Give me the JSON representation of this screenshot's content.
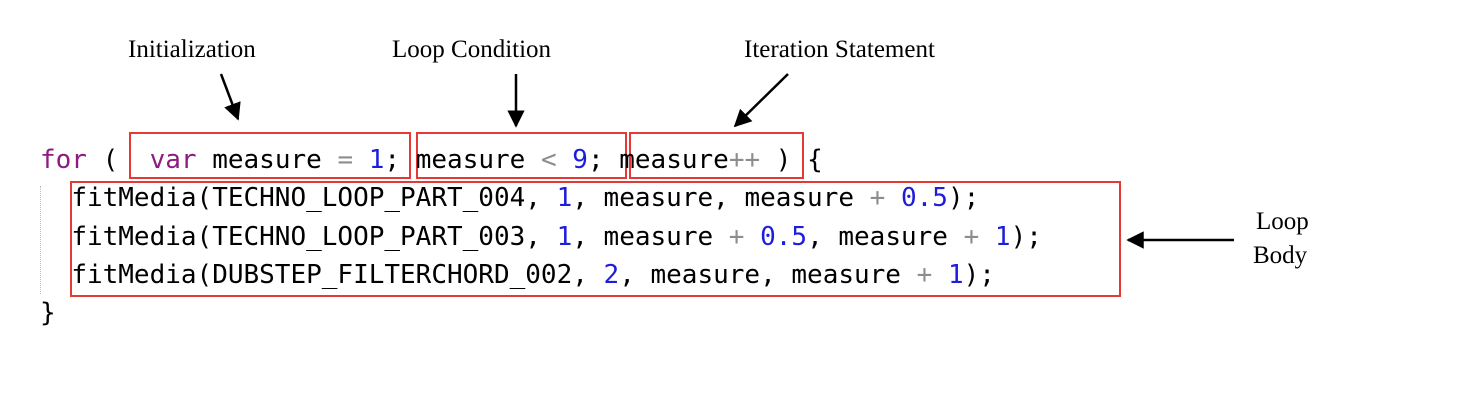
{
  "labels": {
    "initialization": "Initialization",
    "loop_condition": "Loop Condition",
    "iteration_statement": "Iteration Statement",
    "loop_body_line1": "Loop",
    "loop_body_line2": "Body"
  },
  "code": {
    "for_kw": "for",
    "paren_open": "(",
    "var_kw": "var",
    "init_var": "measure",
    "assign": "=",
    "init_val": "1",
    "semi": ";",
    "cond_var": "measure",
    "lt": "<",
    "cond_val": "9",
    "iter_var": "measure",
    "incr": "++",
    "paren_close_brace": ") {",
    "body": [
      {
        "call": "fitMedia(TECHNO_LOOP_PART_004,",
        "arg2": "1",
        "start": "measure,",
        "end_var": "measure",
        "plus": "+",
        "end_num": "0.5",
        "tail": ");"
      },
      {
        "call": "fitMedia(TECHNO_LOOP_PART_003,",
        "arg2": "1",
        "start_var": "measure",
        "start_plus": "+",
        "start_num": "0.5",
        "comma": ",",
        "end_var": "measure",
        "plus": "+",
        "end_num": "1",
        "tail": ");"
      },
      {
        "call": "fitMedia(DUBSTEP_FILTERCHORD_002,",
        "arg2": "2",
        "start": "measure,",
        "end_var": "measure",
        "plus": "+",
        "end_num": "1",
        "tail": ");"
      }
    ],
    "close_brace": "}"
  },
  "colors": {
    "keyword": "#8e1a82",
    "number": "#1d1ddc",
    "operator": "#8d8d8d",
    "highlight_box": "#e53935"
  }
}
